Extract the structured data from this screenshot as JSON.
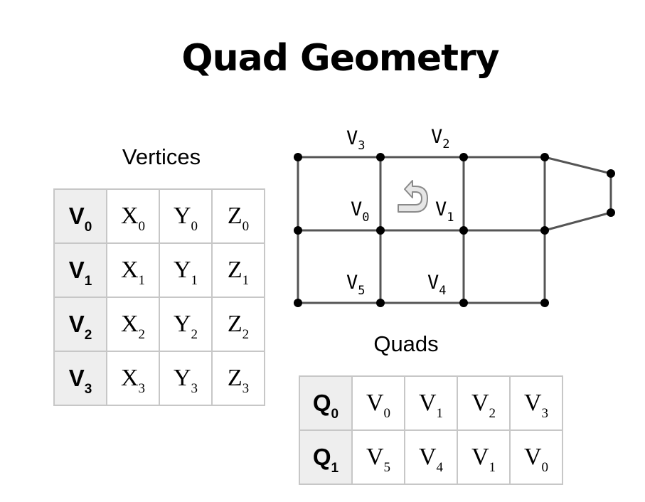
{
  "title": "Quad Geometry",
  "vertices": {
    "title": "Vertices",
    "rows": [
      {
        "name": "V",
        "sub": "0",
        "cells": [
          {
            "b": "X",
            "s": "0"
          },
          {
            "b": "Y",
            "s": "0"
          },
          {
            "b": "Z",
            "s": "0"
          }
        ]
      },
      {
        "name": "V",
        "sub": "1",
        "cells": [
          {
            "b": "X",
            "s": "1"
          },
          {
            "b": "Y",
            "s": "1"
          },
          {
            "b": "Z",
            "s": "1"
          }
        ]
      },
      {
        "name": "V",
        "sub": "2",
        "cells": [
          {
            "b": "X",
            "s": "2"
          },
          {
            "b": "Y",
            "s": "2"
          },
          {
            "b": "Z",
            "s": "2"
          }
        ]
      },
      {
        "name": "V",
        "sub": "3",
        "cells": [
          {
            "b": "X",
            "s": "3"
          },
          {
            "b": "Y",
            "s": "3"
          },
          {
            "b": "Z",
            "s": "3"
          }
        ]
      }
    ]
  },
  "quads": {
    "title": "Quads",
    "rows": [
      {
        "name": "Q",
        "sub": "0",
        "cells": [
          {
            "b": "V",
            "s": "0"
          },
          {
            "b": "V",
            "s": "1"
          },
          {
            "b": "V",
            "s": "2"
          },
          {
            "b": "V",
            "s": "3"
          }
        ]
      },
      {
        "name": "Q",
        "sub": "1",
        "cells": [
          {
            "b": "V",
            "s": "5"
          },
          {
            "b": "V",
            "s": "4"
          },
          {
            "b": "V",
            "s": "1"
          },
          {
            "b": "V",
            "s": "0"
          }
        ]
      }
    ]
  },
  "mesh": {
    "labels": [
      {
        "b": "V",
        "s": "3"
      },
      {
        "b": "V",
        "s": "2"
      },
      {
        "b": "V",
        "s": "0"
      },
      {
        "b": "V",
        "s": "1"
      },
      {
        "b": "V",
        "s": "5"
      },
      {
        "b": "V",
        "s": "4"
      }
    ],
    "winding_icon": "counterclockwise-arrow-icon",
    "line_color": "#555555",
    "vertex_color": "#000000"
  }
}
